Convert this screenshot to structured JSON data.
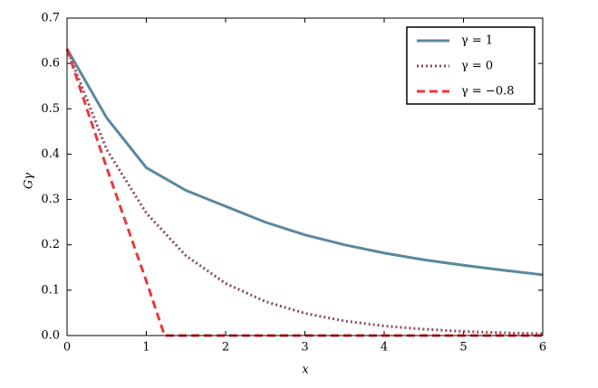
{
  "chart_data": {
    "type": "line",
    "x_label": "x",
    "y_label": "Gγ",
    "xlim": [
      0,
      6
    ],
    "xticks": [
      0,
      1,
      2,
      3,
      4,
      5,
      6
    ],
    "ylim": [
      0,
      0.7
    ],
    "yticks": [
      {
        "value": 0,
        "label": "0.0"
      },
      0.1,
      0.2,
      0.3,
      0.4,
      0.5,
      0.6,
      0.7
    ],
    "legend": "upper right",
    "series": [
      {
        "name": "γ = 1",
        "color": "#5b87a1",
        "linestyle": "solid",
        "x": [
          0,
          0.5,
          1,
          1.5,
          2,
          2.5,
          3,
          3.5,
          4,
          4.5,
          5,
          5.5,
          6
        ],
        "values": [
          0.632,
          0.48,
          0.37,
          0.32,
          0.285,
          0.25,
          0.222,
          0.2,
          0.182,
          0.167,
          0.155,
          0.144,
          0.134
        ]
      },
      {
        "name": "γ = 0",
        "color": "#8b4a5e",
        "linestyle": "dotted",
        "x": [
          0,
          0.5,
          1,
          1.5,
          2,
          2.5,
          3,
          3.5,
          4,
          4.5,
          5,
          5.5,
          6
        ],
        "values": [
          0.632,
          0.41,
          0.27,
          0.176,
          0.115,
          0.075,
          0.049,
          0.032,
          0.021,
          0.014,
          0.009,
          0.006,
          0.004
        ]
      },
      {
        "name": "γ = −0.8",
        "color": "#e8393e",
        "linestyle": "dashed",
        "x": [
          0,
          0.25,
          0.5,
          0.75,
          1,
          1.23,
          6
        ],
        "values": [
          0.632,
          0.5,
          0.37,
          0.245,
          0.12,
          0,
          0
        ]
      }
    ]
  }
}
